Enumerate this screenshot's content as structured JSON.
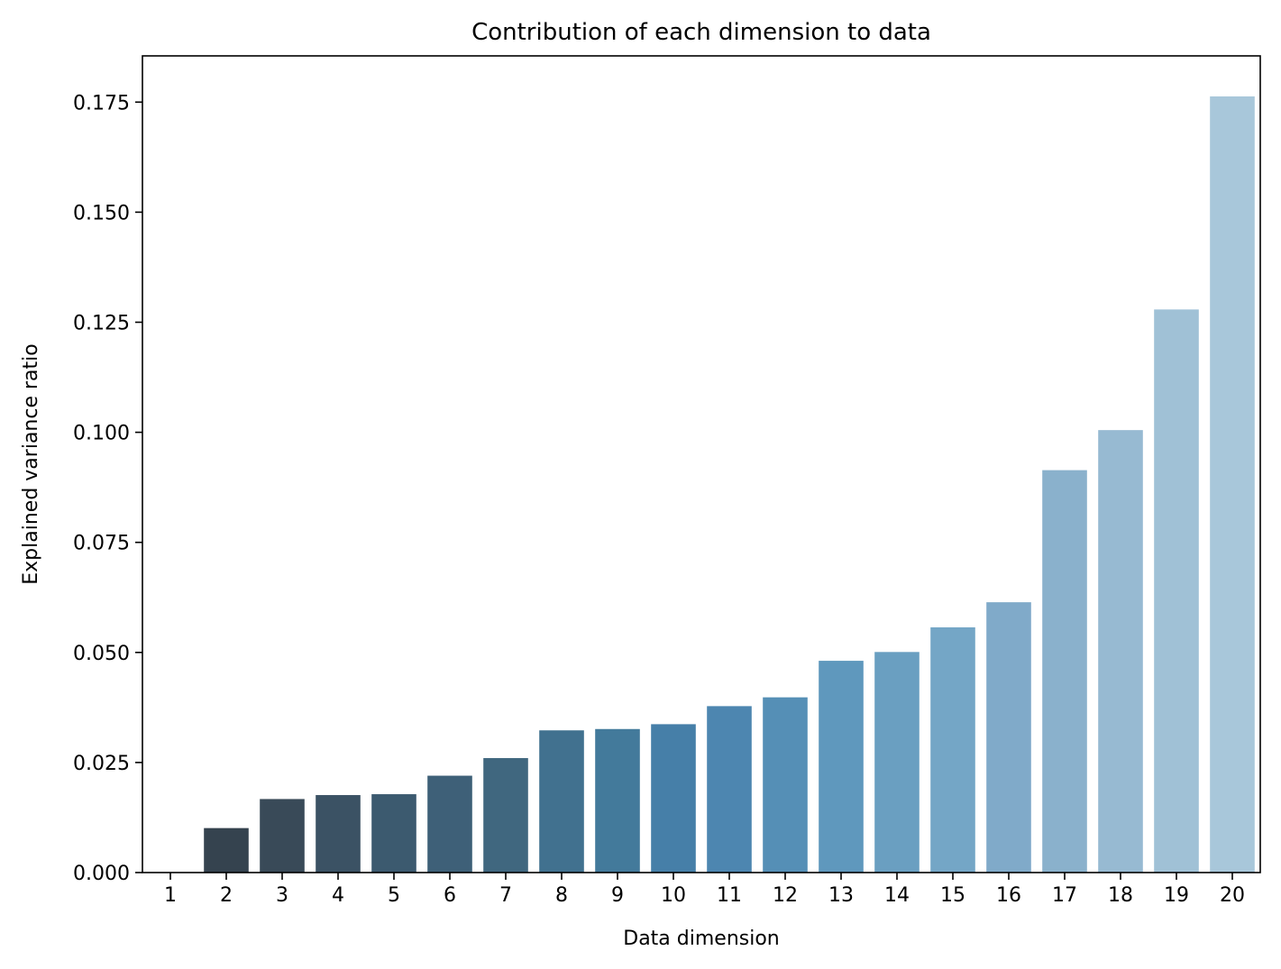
{
  "chart_data": {
    "type": "bar",
    "title": "Contribution of each dimension to data",
    "xlabel": "Data dimension",
    "ylabel": "Explained variance ratio",
    "categories": [
      "1",
      "2",
      "3",
      "4",
      "5",
      "6",
      "7",
      "8",
      "9",
      "10",
      "11",
      "12",
      "13",
      "14",
      "15",
      "16",
      "17",
      "18",
      "19",
      "20"
    ],
    "values": [
      0.0,
      0.0101,
      0.0167,
      0.0176,
      0.0178,
      0.022,
      0.026,
      0.0323,
      0.0326,
      0.0337,
      0.0378,
      0.0398,
      0.0481,
      0.0501,
      0.0557,
      0.0614,
      0.0914,
      0.1005,
      0.1279,
      0.1763
    ],
    "ylim": [
      0,
      0.1855
    ],
    "yticks": [
      0.0,
      0.025,
      0.05,
      0.075,
      0.1,
      0.125,
      0.15,
      0.175
    ],
    "ytick_labels": [
      "0.000",
      "0.025",
      "0.050",
      "0.075",
      "0.100",
      "0.125",
      "0.150",
      "0.175"
    ],
    "colors": [
      "#2f3a44",
      "#35434f",
      "#394a58",
      "#3b5264",
      "#3c5a6f",
      "#3e6078",
      "#40677f",
      "#41718f",
      "#437a9b",
      "#467fa8",
      "#4d86b0",
      "#558fb6",
      "#5f98bd",
      "#6a9fc1",
      "#74a6c6",
      "#80aac9",
      "#8ab1cc",
      "#97bad2",
      "#a0c1d6",
      "#a8c7da"
    ],
    "grid": false,
    "legend": "none"
  }
}
